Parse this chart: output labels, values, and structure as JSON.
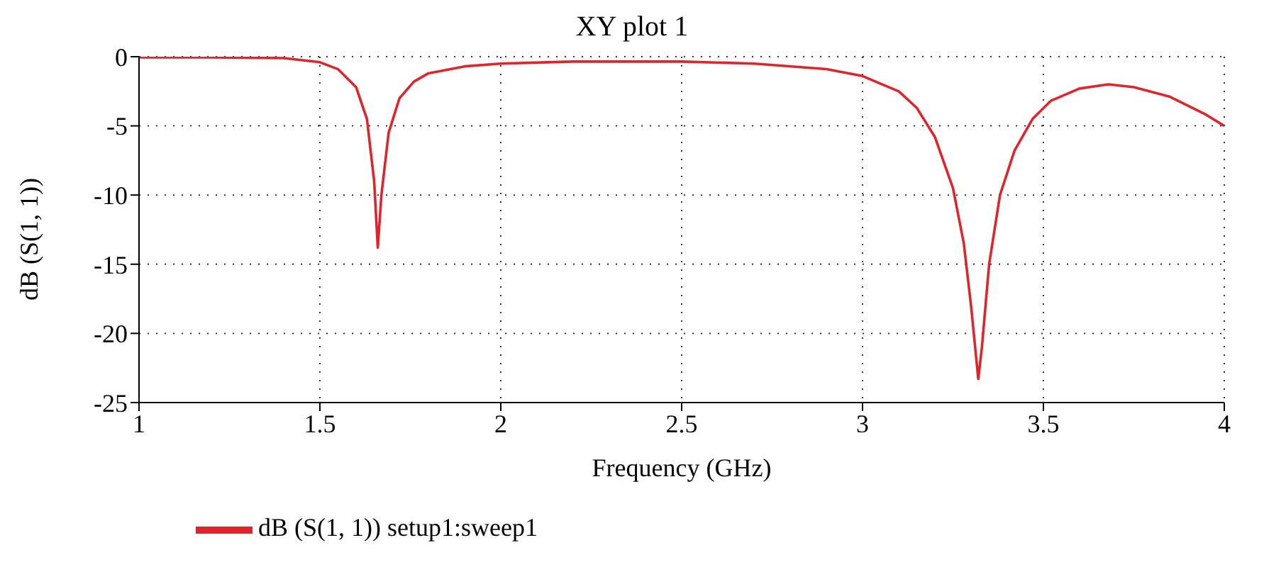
{
  "chart_data": {
    "type": "line",
    "title": "XY plot 1",
    "xlabel": "Frequency (GHz)",
    "ylabel": "dB (S(1, 1))",
    "xlim": [
      1,
      4
    ],
    "xticks": [
      1,
      1.5,
      2,
      2.5,
      3,
      3.5,
      4
    ],
    "ylim": [
      -25,
      0
    ],
    "yticks": [
      -25,
      -20,
      -15,
      -10,
      -5,
      0
    ],
    "grid": true,
    "legend": "bottom",
    "line_style": "solid",
    "marker": "none",
    "series": [
      {
        "name": "dB (S(1, 1)) setup1:sweep1",
        "color": "#e0242b",
        "x": [
          1.0,
          1.2,
          1.4,
          1.5,
          1.55,
          1.6,
          1.63,
          1.65,
          1.66,
          1.67,
          1.69,
          1.72,
          1.76,
          1.8,
          1.9,
          2.0,
          2.2,
          2.5,
          2.7,
          2.9,
          3.0,
          3.1,
          3.15,
          3.2,
          3.25,
          3.28,
          3.3,
          3.32,
          3.33,
          3.35,
          3.38,
          3.42,
          3.47,
          3.52,
          3.6,
          3.68,
          3.75,
          3.85,
          3.95,
          4.0
        ],
        "values": [
          -0.05,
          -0.05,
          -0.1,
          -0.4,
          -0.9,
          -2.2,
          -4.5,
          -9,
          -13.8,
          -10,
          -5.5,
          -3,
          -1.8,
          -1.2,
          -0.7,
          -0.5,
          -0.35,
          -0.35,
          -0.5,
          -0.9,
          -1.4,
          -2.5,
          -3.7,
          -5.8,
          -9.5,
          -13.5,
          -18,
          -23.3,
          -21,
          -15,
          -10,
          -6.8,
          -4.5,
          -3.2,
          -2.3,
          -2.0,
          -2.2,
          -2.9,
          -4.2,
          -5.0
        ]
      }
    ]
  }
}
